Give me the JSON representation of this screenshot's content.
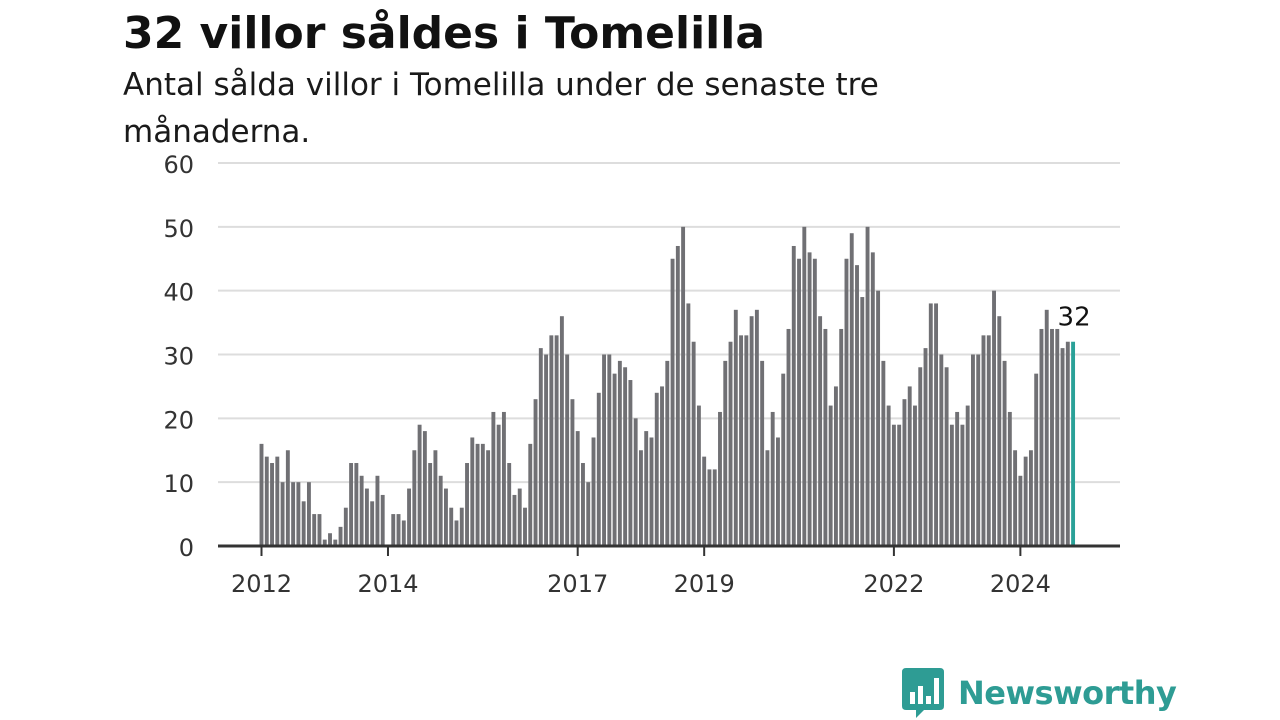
{
  "header": {
    "title": "32 villor såldes i Tomelilla",
    "subtitle": "Antal sålda villor i Tomelilla under de senaste tre månaderna."
  },
  "branding": {
    "logo_text": "Newsworthy",
    "logo_icon": "bar-chart-speech-bubble-icon",
    "color": "#2e9c94"
  },
  "colors": {
    "bar": "#707074",
    "highlight": "#2aa198",
    "grid": "#dddddd",
    "axis": "#333333"
  },
  "chart_data": {
    "type": "bar",
    "title": "32 villor såldes i Tomelilla",
    "subtitle": "Antal sålda villor i Tomelilla under de senaste tre månaderna.",
    "ylim": [
      0,
      60
    ],
    "yticks": [
      0,
      10,
      20,
      30,
      40,
      50,
      60
    ],
    "xticks": [
      "2012",
      "2014",
      "2017",
      "2019",
      "2022",
      "2024"
    ],
    "grid": true,
    "annotation": "32",
    "values": [
      16,
      14,
      13,
      14,
      10,
      15,
      10,
      10,
      7,
      10,
      5,
      5,
      1,
      2,
      1,
      3,
      6,
      13,
      13,
      11,
      9,
      7,
      11,
      8,
      0,
      5,
      5,
      4,
      9,
      15,
      19,
      18,
      13,
      15,
      11,
      9,
      6,
      4,
      6,
      13,
      17,
      16,
      16,
      15,
      21,
      19,
      21,
      13,
      8,
      9,
      6,
      16,
      23,
      31,
      30,
      33,
      33,
      36,
      30,
      23,
      18,
      13,
      10,
      17,
      24,
      30,
      30,
      27,
      29,
      28,
      26,
      20,
      15,
      18,
      17,
      24,
      25,
      29,
      45,
      47,
      50,
      38,
      32,
      22,
      14,
      12,
      12,
      21,
      29,
      32,
      37,
      33,
      33,
      36,
      37,
      29,
      15,
      21,
      17,
      27,
      34,
      47,
      45,
      50,
      46,
      45,
      36,
      34,
      22,
      25,
      34,
      45,
      49,
      44,
      39,
      50,
      46,
      40,
      29,
      22,
      19,
      19,
      23,
      25,
      22,
      28,
      31,
      38,
      38,
      30,
      28,
      19,
      21,
      19,
      22,
      30,
      30,
      33,
      33,
      40,
      36,
      29,
      21,
      15,
      11,
      14,
      15,
      27,
      34,
      37,
      34,
      34,
      31,
      32,
      32
    ]
  }
}
